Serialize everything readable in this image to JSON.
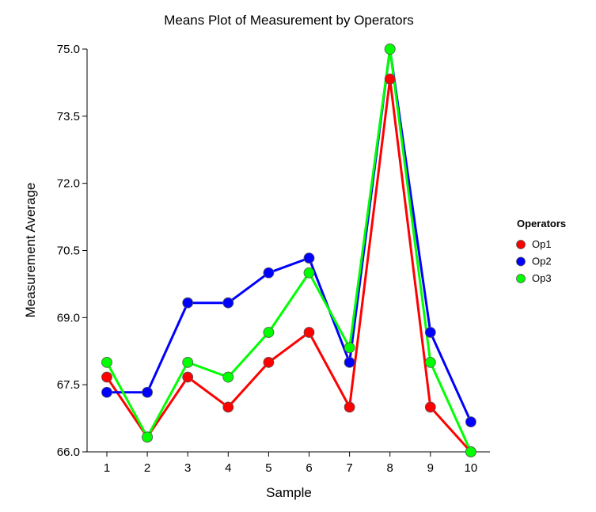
{
  "chart_data": {
    "type": "line",
    "title": "Means Plot of Measurement by Operators",
    "xlabel": "Sample",
    "ylabel": "Measurement Average",
    "categories": [
      "1",
      "2",
      "3",
      "4",
      "5",
      "6",
      "7",
      "8",
      "9",
      "10"
    ],
    "y_ticks": [
      "66.0",
      "67.5",
      "69.0",
      "70.5",
      "72.0",
      "73.5",
      "75.0"
    ],
    "ylim": [
      66.0,
      75.0
    ],
    "grid": false,
    "legend": {
      "title": "Operators",
      "placement": "right"
    },
    "series": [
      {
        "name": "Op1",
        "color": "#ff0000",
        "values": [
          67.67,
          66.33,
          67.67,
          67.0,
          68.0,
          68.67,
          67.0,
          74.33,
          67.0,
          66.0
        ]
      },
      {
        "name": "Op2",
        "color": "#0000ff",
        "values": [
          67.33,
          67.33,
          69.33,
          69.33,
          70.0,
          70.33,
          68.0,
          75.0,
          68.67,
          66.67
        ]
      },
      {
        "name": "Op3",
        "color": "#00ff00",
        "values": [
          68.0,
          66.33,
          68.0,
          67.67,
          68.67,
          70.0,
          68.33,
          75.0,
          68.0,
          66.0
        ]
      }
    ]
  }
}
